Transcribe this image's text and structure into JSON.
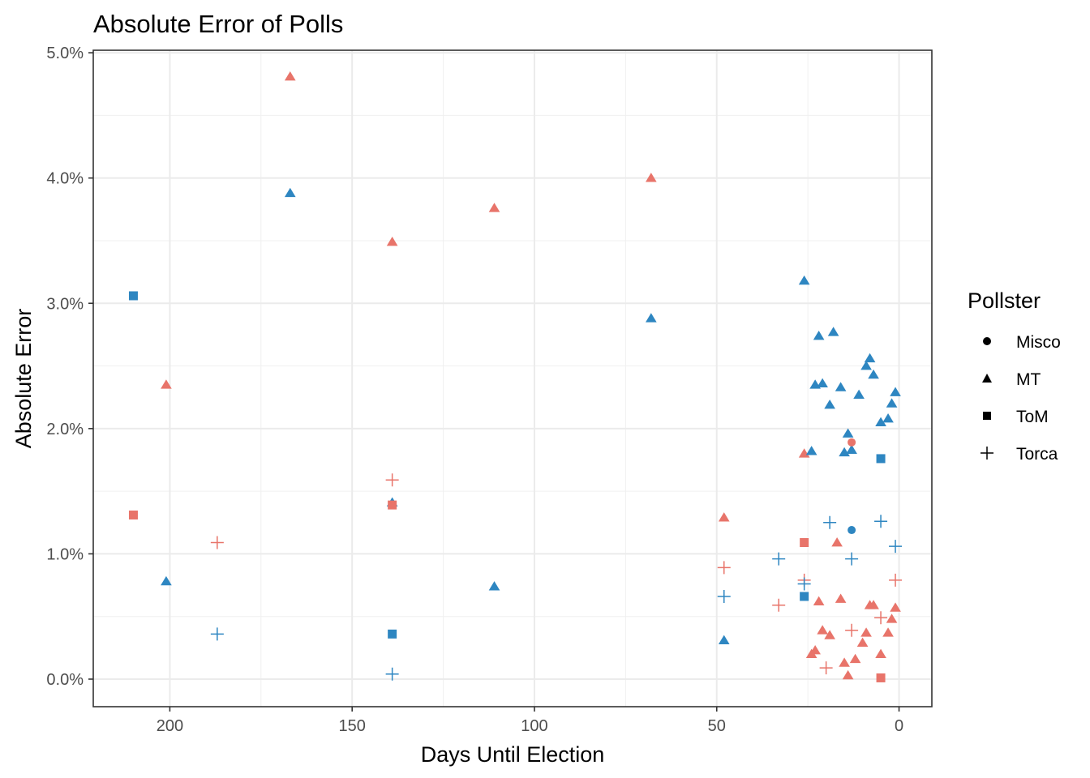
{
  "chart_data": {
    "type": "scatter",
    "title": "Absolute Error of Polls",
    "xlabel": "Days Until Election",
    "ylabel": "Absolute Error",
    "x_reversed": true,
    "xlim": [
      221,
      -9
    ],
    "ylim": [
      -0.0022,
      0.0502
    ],
    "x_ticks": [
      200,
      150,
      100,
      50,
      0
    ],
    "x_tick_labels": [
      "200",
      "150",
      "100",
      "50",
      "0"
    ],
    "y_ticks": [
      0.0,
      0.01,
      0.02,
      0.03,
      0.04,
      0.05
    ],
    "y_tick_labels": [
      "0.0%",
      "1.0%",
      "2.0%",
      "3.0%",
      "4.0%",
      "5.0%"
    ],
    "grid": true,
    "legend": {
      "title": "Pollster",
      "placement": "right",
      "entries": [
        {
          "label": "Misco",
          "shape": "circle"
        },
        {
          "label": "MT",
          "shape": "triangle"
        },
        {
          "label": "ToM",
          "shape": "square"
        },
        {
          "label": "Torca",
          "shape": "plus"
        }
      ]
    },
    "colors": {
      "red": "#E8746A",
      "blue": "#2E86C1"
    },
    "series": [
      {
        "shape": "triangle",
        "color": "red",
        "points": [
          [
            167,
            0.0481
          ],
          [
            68,
            0.04
          ],
          [
            111,
            0.0376
          ],
          [
            139,
            0.0349
          ],
          [
            201,
            0.0235
          ],
          [
            48,
            0.0129
          ],
          [
            26,
            0.018
          ],
          [
            17,
            0.0109
          ],
          [
            22,
            0.0062
          ],
          [
            16,
            0.0064
          ],
          [
            7,
            0.0059
          ],
          [
            8,
            0.0059
          ],
          [
            1,
            0.0057
          ],
          [
            2,
            0.0048
          ],
          [
            9,
            0.0037
          ],
          [
            3,
            0.0037
          ],
          [
            21,
            0.0039
          ],
          [
            19,
            0.0035
          ],
          [
            10,
            0.0029
          ],
          [
            5,
            0.002
          ],
          [
            24,
            0.002
          ],
          [
            23,
            0.0023
          ],
          [
            12,
            0.0016
          ],
          [
            15,
            0.0013
          ],
          [
            14,
            0.0003
          ]
        ]
      },
      {
        "shape": "triangle",
        "color": "blue",
        "points": [
          [
            167,
            0.0388
          ],
          [
            68,
            0.0288
          ],
          [
            26,
            0.0318
          ],
          [
            18,
            0.0277
          ],
          [
            22,
            0.0274
          ],
          [
            8,
            0.0256
          ],
          [
            9,
            0.025
          ],
          [
            7,
            0.0243
          ],
          [
            23,
            0.0235
          ],
          [
            21,
            0.0236
          ],
          [
            16,
            0.0233
          ],
          [
            1,
            0.0229
          ],
          [
            11,
            0.0227
          ],
          [
            2,
            0.022
          ],
          [
            19,
            0.0219
          ],
          [
            3,
            0.0208
          ],
          [
            5,
            0.0205
          ],
          [
            14,
            0.0196
          ],
          [
            24,
            0.0182
          ],
          [
            13,
            0.0183
          ],
          [
            15,
            0.0181
          ],
          [
            139,
            0.0141
          ],
          [
            201,
            0.0078
          ],
          [
            111,
            0.0074
          ],
          [
            48,
            0.0031
          ]
        ]
      },
      {
        "shape": "square",
        "color": "red",
        "points": [
          [
            210,
            0.0131
          ],
          [
            139,
            0.0139
          ],
          [
            26,
            0.0109
          ],
          [
            5,
            0.0001
          ]
        ]
      },
      {
        "shape": "square",
        "color": "blue",
        "points": [
          [
            210,
            0.0306
          ],
          [
            5,
            0.0176
          ],
          [
            26,
            0.0066
          ],
          [
            139,
            0.0036
          ]
        ]
      },
      {
        "shape": "circle",
        "color": "red",
        "points": [
          [
            13,
            0.0189
          ]
        ]
      },
      {
        "shape": "circle",
        "color": "blue",
        "points": [
          [
            13,
            0.0119
          ]
        ]
      },
      {
        "shape": "plus",
        "color": "red",
        "points": [
          [
            139,
            0.0159
          ],
          [
            187,
            0.0109
          ],
          [
            48,
            0.0089
          ],
          [
            1,
            0.0079
          ],
          [
            26,
            0.0079
          ],
          [
            33,
            0.0059
          ],
          [
            5,
            0.0049
          ],
          [
            13,
            0.0039
          ],
          [
            20,
            0.0009
          ]
        ]
      },
      {
        "shape": "plus",
        "color": "blue",
        "points": [
          [
            19,
            0.0125
          ],
          [
            5,
            0.0126
          ],
          [
            1,
            0.0106
          ],
          [
            33,
            0.0096
          ],
          [
            13,
            0.0096
          ],
          [
            26,
            0.0076
          ],
          [
            48,
            0.0066
          ],
          [
            187,
            0.0036
          ],
          [
            139,
            0.0004
          ]
        ]
      }
    ]
  }
}
